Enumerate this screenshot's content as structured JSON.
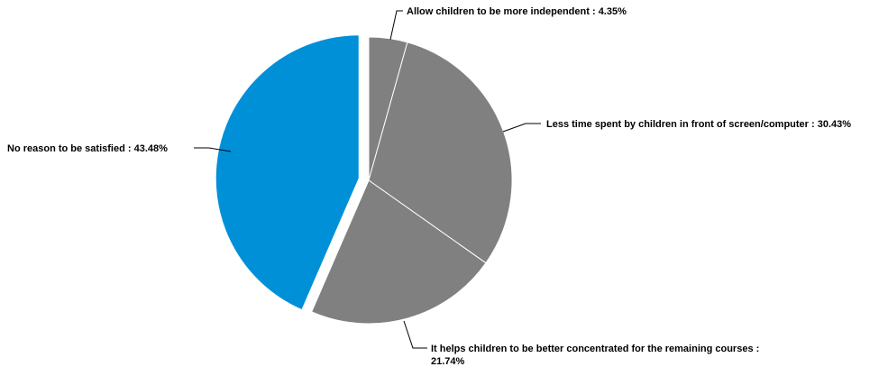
{
  "chart_data": {
    "type": "pie",
    "title": "",
    "slices": [
      {
        "label": "Allow children to be more independent",
        "value": 4.35,
        "value_text": "4.35%",
        "color": "#808080",
        "exploded": false
      },
      {
        "label": "Less time spent by children in front of screen/computer",
        "value": 30.43,
        "value_text": "30.43%",
        "color": "#808080",
        "exploded": false
      },
      {
        "label": "It helps children to be better concentrated for the remaining courses",
        "value": 21.74,
        "value_text": "21.74%",
        "color": "#808080",
        "exploded": false
      },
      {
        "label": "No reason to be satisfied",
        "value": 43.48,
        "value_text": "43.48%",
        "color": "#0090d8",
        "exploded": true
      }
    ],
    "slice_border_color": "#ffffff",
    "legend": "none",
    "label_style": "outside labels with leader lines"
  }
}
